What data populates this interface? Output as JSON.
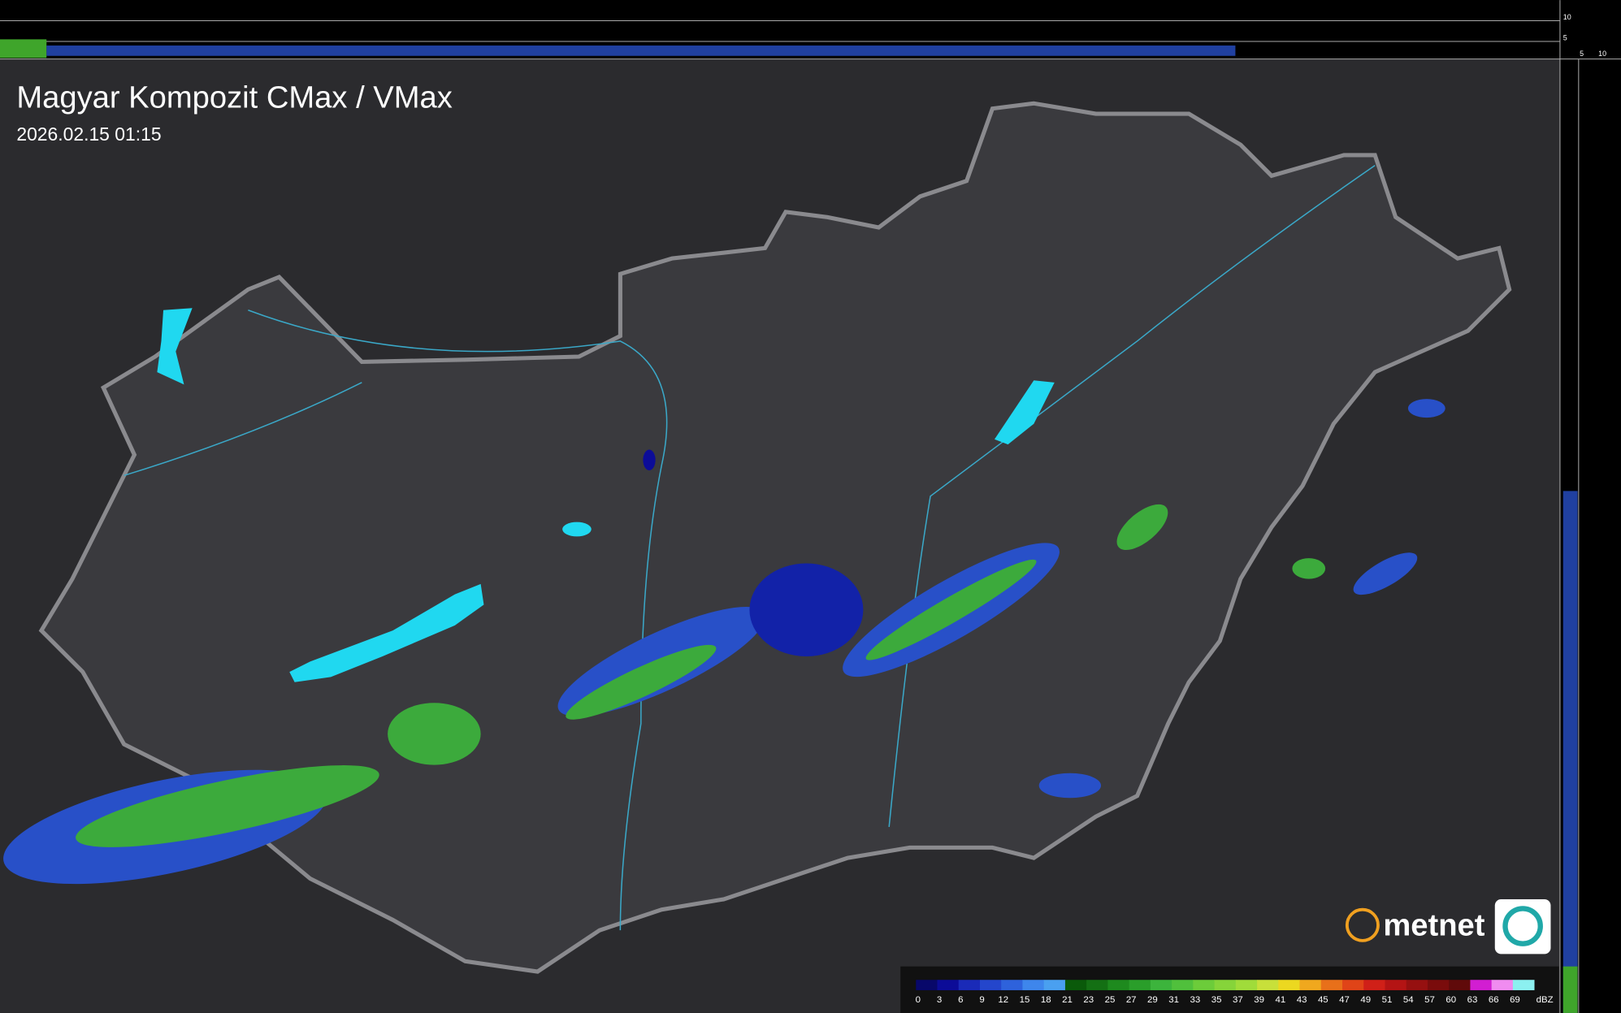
{
  "map": {
    "title": "Magyar Kompozit CMax / VMax",
    "timestamp": "2026.02.15 01:15",
    "logo": "metnet",
    "side_axis": {
      "top_ticks": [
        10,
        5
      ],
      "right_ticks": [
        5,
        10
      ]
    },
    "legend": {
      "unit": "dBZ",
      "stops": [
        {
          "value": 0,
          "color": "#08086a"
        },
        {
          "value": 3,
          "color": "#0c0c98"
        },
        {
          "value": 6,
          "color": "#1a2ab8"
        },
        {
          "value": 9,
          "color": "#2446cc"
        },
        {
          "value": 12,
          "color": "#2e62dc"
        },
        {
          "value": 15,
          "color": "#3e86ec"
        },
        {
          "value": 18,
          "color": "#4aa0f0"
        },
        {
          "value": 21,
          "color": "#0a5a0a"
        },
        {
          "value": 23,
          "color": "#147014"
        },
        {
          "value": 25,
          "color": "#1e8a1e"
        },
        {
          "value": 27,
          "color": "#2a9e2a"
        },
        {
          "value": 29,
          "color": "#3cb43c"
        },
        {
          "value": 31,
          "color": "#50c03c"
        },
        {
          "value": 33,
          "color": "#6ccc3a"
        },
        {
          "value": 35,
          "color": "#86d43a"
        },
        {
          "value": 37,
          "color": "#a0dc3a"
        },
        {
          "value": 39,
          "color": "#c8e03a"
        },
        {
          "value": 41,
          "color": "#ecd820"
        },
        {
          "value": 43,
          "color": "#f0a81e"
        },
        {
          "value": 45,
          "color": "#e8701a"
        },
        {
          "value": 47,
          "color": "#e04418"
        },
        {
          "value": 49,
          "color": "#d02018"
        },
        {
          "value": 51,
          "color": "#b41414"
        },
        {
          "value": 54,
          "color": "#961010"
        },
        {
          "value": 57,
          "color": "#7a0c0c"
        },
        {
          "value": 60,
          "color": "#600a0a"
        },
        {
          "value": 63,
          "color": "#d21ed2"
        },
        {
          "value": 66,
          "color": "#f08cf0"
        },
        {
          "value": 69,
          "color": "#8cf0f0"
        }
      ]
    }
  }
}
